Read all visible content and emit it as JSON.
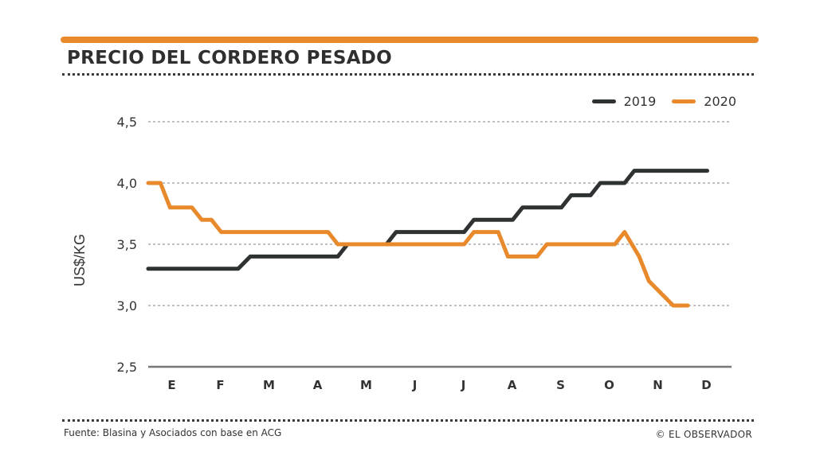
{
  "header": {
    "title": "PRECIO DEL CORDERO PESADO"
  },
  "footer": {
    "source": "Fuente: Blasina y Asociados con base en ACG",
    "credit": "© EL OBSERVADOR"
  },
  "colors": {
    "accent": "#e8892c",
    "series_2019": "#2f3233",
    "series_2020": "#e8892c",
    "grid": "#9a9a9a",
    "axis": "#777777",
    "text": "#333333"
  },
  "chart_data": {
    "type": "line",
    "title": "PRECIO DEL CORDERO PESADO",
    "xlabel": "",
    "ylabel": "US$/KG",
    "categories": [
      "E",
      "F",
      "M",
      "A",
      "M",
      "J",
      "J",
      "A",
      "S",
      "O",
      "N",
      "D"
    ],
    "xlim": [
      0,
      12
    ],
    "ylim": [
      2.5,
      4.5
    ],
    "y_ticks": [
      2.5,
      3.0,
      3.5,
      4.0,
      4.5
    ],
    "y_tick_labels": [
      "2,5",
      "3,0",
      "3,5",
      "4,0",
      "4,5"
    ],
    "grid": true,
    "legend_position": "top-right",
    "series": [
      {
        "name": "2019",
        "x": [
          0,
          1.85,
          2.1,
          3.9,
          4.1,
          4.9,
          5.1,
          6.5,
          6.7,
          7.5,
          7.7,
          8.5,
          8.7,
          9.1,
          9.3,
          9.8,
          10.0,
          11.5
        ],
        "values": [
          3.3,
          3.3,
          3.4,
          3.4,
          3.5,
          3.5,
          3.6,
          3.6,
          3.7,
          3.7,
          3.8,
          3.8,
          3.9,
          3.9,
          4.0,
          4.0,
          4.1,
          4.1
        ]
      },
      {
        "name": "2020",
        "x": [
          0,
          0.25,
          0.45,
          0.9,
          1.1,
          1.3,
          1.5,
          3.7,
          3.9,
          6.5,
          6.7,
          7.2,
          7.4,
          8.0,
          8.2,
          9.6,
          9.8,
          10.1,
          10.3,
          10.8,
          11.1
        ],
        "values": [
          4.0,
          4.0,
          3.8,
          3.8,
          3.7,
          3.7,
          3.6,
          3.6,
          3.5,
          3.5,
          3.6,
          3.6,
          3.4,
          3.4,
          3.5,
          3.5,
          3.6,
          3.4,
          3.2,
          3.0,
          3.0
        ]
      }
    ]
  }
}
